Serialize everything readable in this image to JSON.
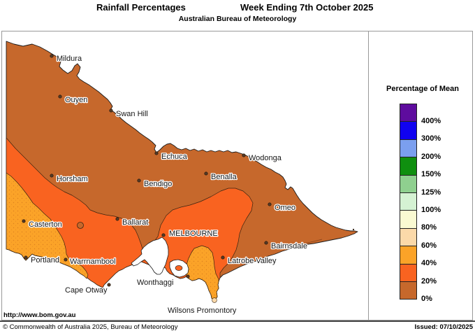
{
  "header": {
    "title_left": "Rainfall Percentages",
    "title_right": "Week Ending 7th October 2025",
    "subtitle": "Australian Bureau of Meteorology"
  },
  "legend": {
    "title": "Percentage of Mean",
    "entries": [
      {
        "color": "#5E0C9E",
        "boundary_label": "400%"
      },
      {
        "color": "#1002F0",
        "boundary_label": "300%"
      },
      {
        "color": "#7B9FEF",
        "boundary_label": "200%"
      },
      {
        "color": "#0F8F0F",
        "boundary_label": "150%"
      },
      {
        "color": "#8FD08F",
        "boundary_label": "125%"
      },
      {
        "color": "#D5F2D3",
        "boundary_label": "100%"
      },
      {
        "color": "#FAFAD2",
        "boundary_label": "80%"
      },
      {
        "color": "#FBD9A9",
        "boundary_label": "60%"
      },
      {
        "color": "#FBA328",
        "boundary_label": "40%"
      },
      {
        "color": "#F96320",
        "boundary_label": "20%"
      },
      {
        "color": "#C6682C",
        "boundary_label": "0%"
      }
    ]
  },
  "map": {
    "region_colors": {
      "pct_0_20": "#C6682C",
      "pct_20_40": "#F96320",
      "pct_40_60": "#FBA328",
      "pct_60_80": "#FBD9A9"
    },
    "cities": [
      {
        "name": "Mildura",
        "dot": [
          74,
          80
        ],
        "label": [
          81,
          83
        ]
      },
      {
        "name": "Ouyen",
        "dot": [
          86,
          138
        ],
        "label": [
          93,
          142
        ]
      },
      {
        "name": "Swan Hill",
        "dot": [
          159,
          158
        ],
        "label": [
          166,
          162
        ]
      },
      {
        "name": "Echuca",
        "dot": [
          224,
          219
        ],
        "label": [
          231,
          223
        ]
      },
      {
        "name": "Wodonga",
        "dot": [
          349,
          222
        ],
        "label": [
          356,
          225
        ]
      },
      {
        "name": "Benalla",
        "dot": [
          295,
          248
        ],
        "label": [
          302,
          252
        ]
      },
      {
        "name": "Bendigo",
        "dot": [
          199,
          258
        ],
        "label": [
          206,
          262
        ]
      },
      {
        "name": "Horsham",
        "dot": [
          74,
          251
        ],
        "label": [
          81,
          255
        ]
      },
      {
        "name": "Omeo",
        "dot": [
          386,
          292
        ],
        "label": [
          393,
          296
        ]
      },
      {
        "name": "Casterton",
        "dot": [
          34,
          316
        ],
        "label": [
          41,
          320
        ]
      },
      {
        "name": "Ballarat",
        "dot": [
          168,
          313
        ],
        "label": [
          175,
          317
        ]
      },
      {
        "name": "MELBOURNE",
        "dot": [
          234,
          336
        ],
        "label": [
          242,
          333
        ]
      },
      {
        "name": "Bairnsdale",
        "dot": [
          381,
          347
        ],
        "label": [
          388,
          351
        ]
      },
      {
        "name": "Latrobe Valley",
        "dot": [
          319,
          368
        ],
        "label": [
          326,
          372
        ]
      },
      {
        "name": "Portland",
        "dot": [
          37,
          368
        ],
        "label": [
          44,
          371
        ]
      },
      {
        "name": "Warrnambool",
        "dot": [
          94,
          371
        ],
        "label": [
          100,
          373
        ]
      },
      {
        "name": "Cape Otway",
        "dot": [
          156,
          407
        ],
        "label": [
          93,
          414
        ]
      },
      {
        "name": "Wonthaggi",
        "dot": [
          269,
          395
        ],
        "label": [
          196,
          403
        ]
      },
      {
        "name": "Wilsons Promontory",
        "dot": null,
        "label": [
          240,
          443
        ]
      }
    ]
  },
  "footer": {
    "url": "http://www.bom.gov.au",
    "copyright": "© Commonwealth of Australia 2025, Bureau of Meteorology",
    "issued": "Issued: 07/10/2025"
  }
}
